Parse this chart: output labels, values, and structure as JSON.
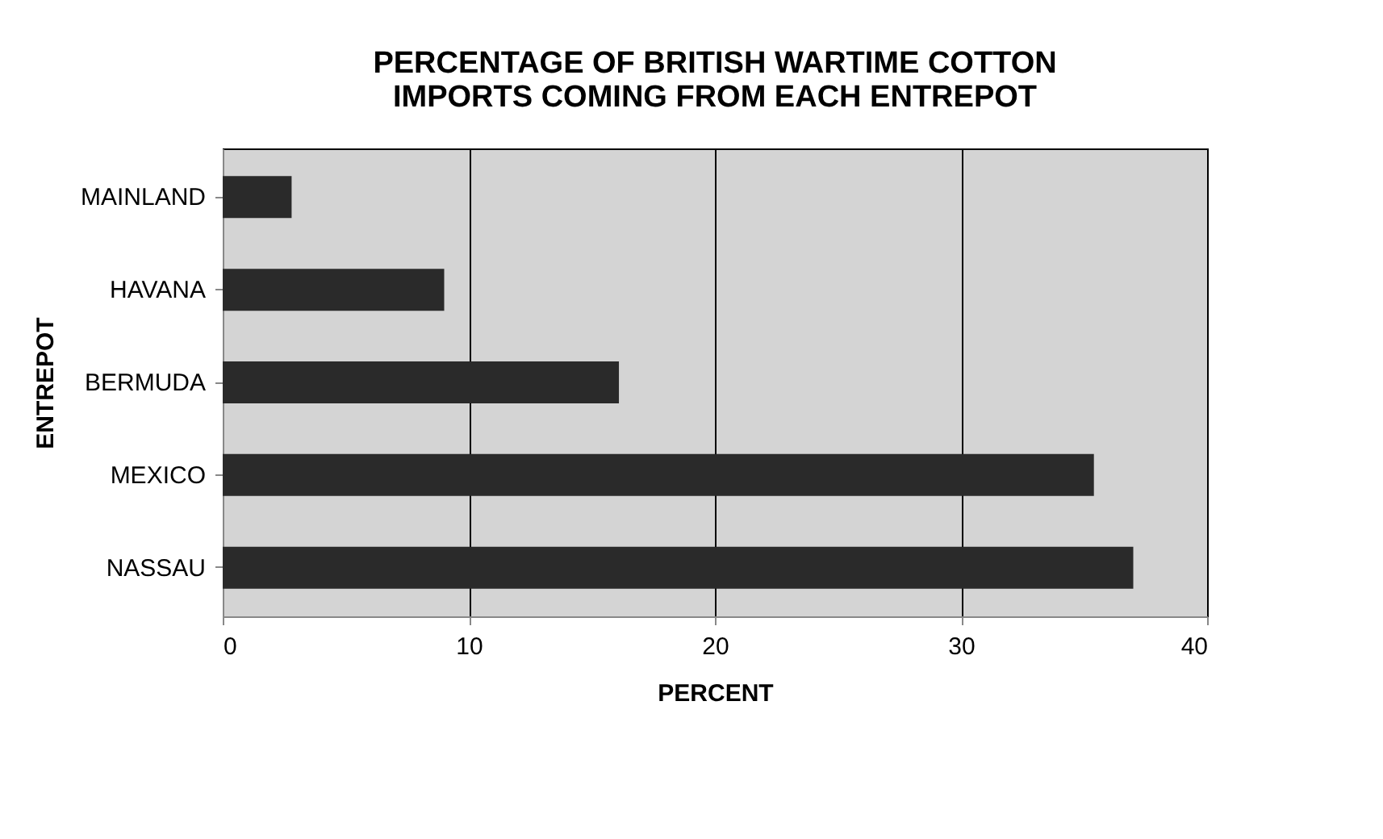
{
  "chart_data": {
    "type": "bar",
    "orientation": "horizontal",
    "title": [
      "PERCENTAGE OF BRITISH WARTIME COTTON",
      "IMPORTS COMING FROM EACH ENTREPOT"
    ],
    "xlabel": "PERCENT",
    "ylabel": "ENTREPOT",
    "categories": [
      "MAINLAND",
      "HAVANA",
      "BERMUDA",
      "MEXICO",
      "NASSAU"
    ],
    "values": [
      2.8,
      9.0,
      16.1,
      35.4,
      37.0
    ],
    "color": "#2a2a2a",
    "xlim": [
      0,
      40
    ],
    "xticks": [
      0,
      10,
      20,
      30,
      40
    ],
    "grid": "x"
  }
}
